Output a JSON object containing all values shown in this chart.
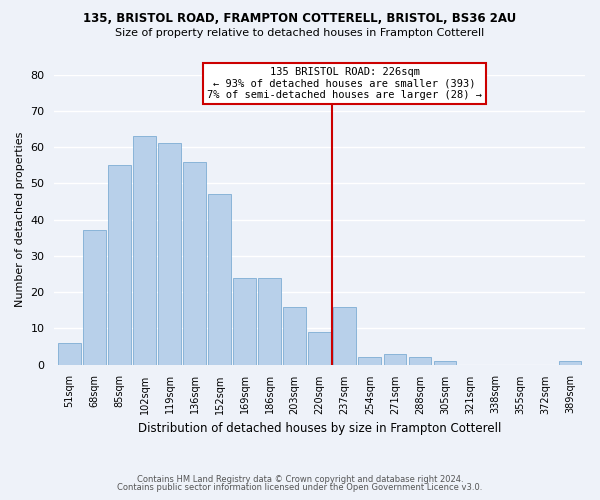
{
  "title1": "135, BRISTOL ROAD, FRAMPTON COTTERELL, BRISTOL, BS36 2AU",
  "title2": "Size of property relative to detached houses in Frampton Cotterell",
  "xlabel": "Distribution of detached houses by size in Frampton Cotterell",
  "ylabel": "Number of detached properties",
  "bin_labels": [
    "51sqm",
    "68sqm",
    "85sqm",
    "102sqm",
    "119sqm",
    "136sqm",
    "152sqm",
    "169sqm",
    "186sqm",
    "203sqm",
    "220sqm",
    "237sqm",
    "254sqm",
    "271sqm",
    "288sqm",
    "305sqm",
    "321sqm",
    "338sqm",
    "355sqm",
    "372sqm",
    "389sqm"
  ],
  "bar_heights": [
    6,
    37,
    55,
    63,
    61,
    56,
    47,
    24,
    24,
    16,
    9,
    16,
    2,
    3,
    2,
    1,
    0,
    0,
    0,
    0,
    1
  ],
  "bar_color": "#b8d0ea",
  "bar_edge_color": "#7eadd4",
  "vline_x": 10.5,
  "vline_color": "#cc0000",
  "annotation_title": "135 BRISTOL ROAD: 226sqm",
  "annotation_line1": "← 93% of detached houses are smaller (393)",
  "annotation_line2": "7% of semi-detached houses are larger (28) →",
  "annotation_box_color": "#ffffff",
  "annotation_box_edge": "#cc0000",
  "ylim": [
    0,
    80
  ],
  "yticks": [
    0,
    10,
    20,
    30,
    40,
    50,
    60,
    70,
    80
  ],
  "footer1": "Contains HM Land Registry data © Crown copyright and database right 2024.",
  "footer2": "Contains public sector information licensed under the Open Government Licence v3.0.",
  "bg_color": "#eef2f9"
}
